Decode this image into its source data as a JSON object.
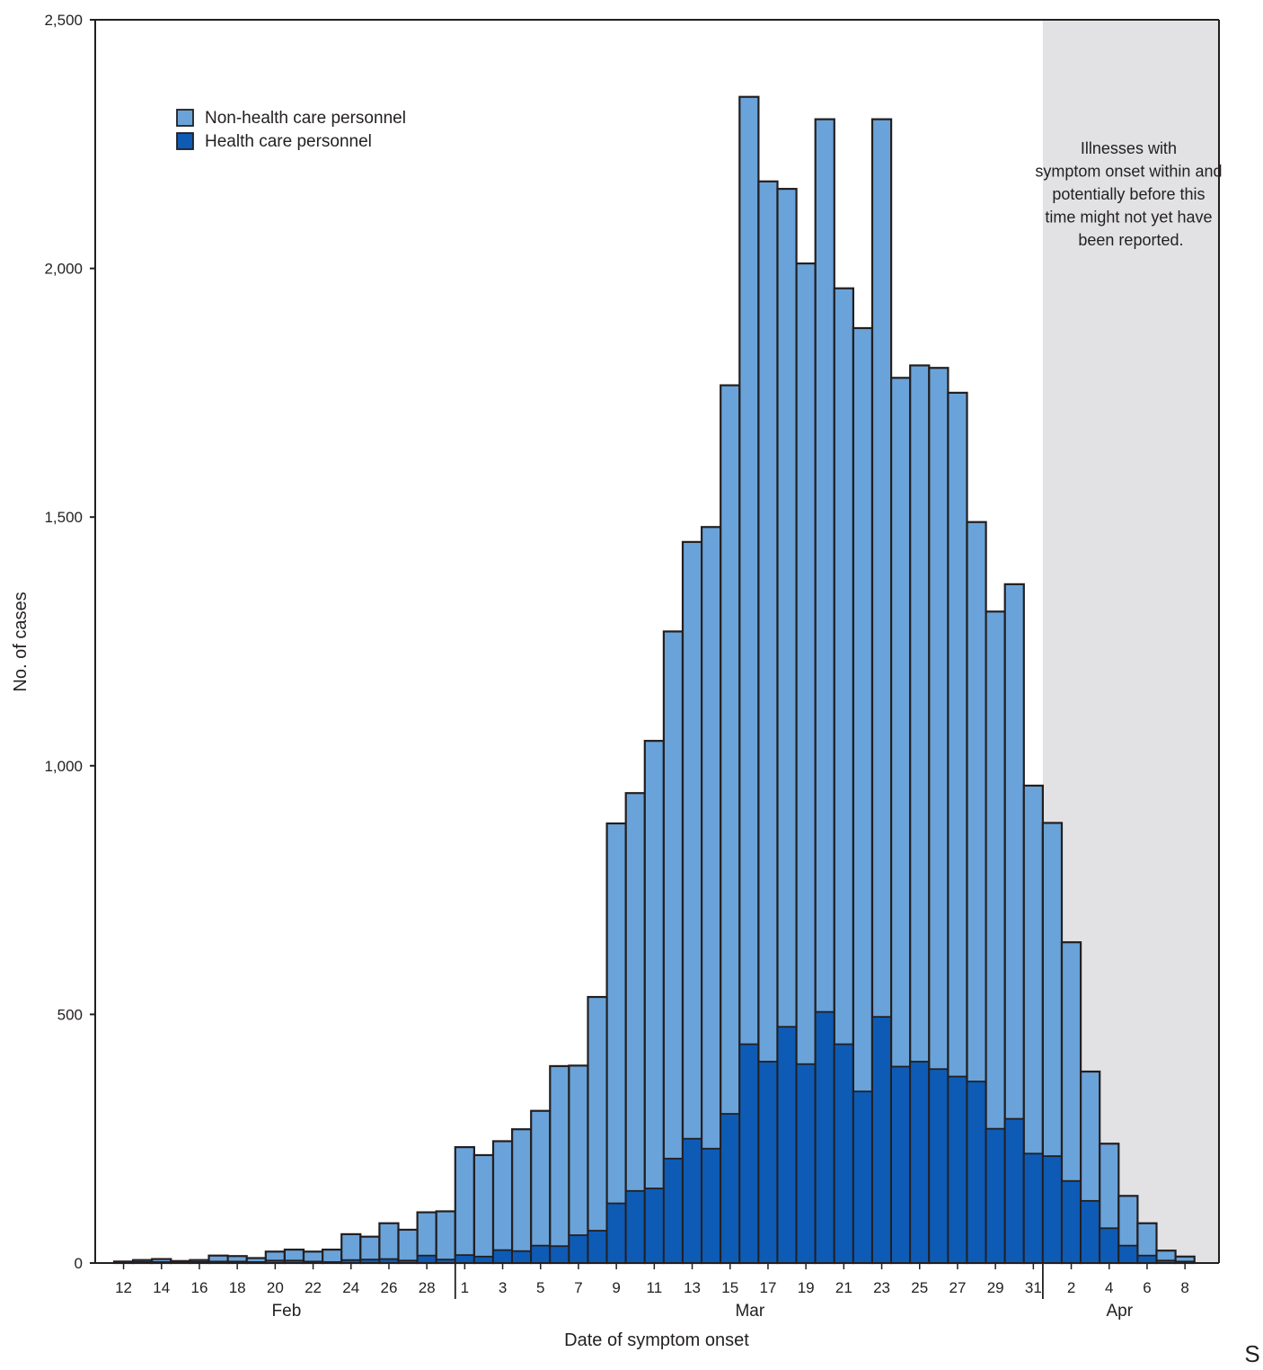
{
  "chart_data": {
    "type": "bar",
    "stacked": true,
    "xlabel": "Date of symptom onset",
    "ylabel": "No. of cases",
    "ylim": [
      0,
      2500
    ],
    "y_ticks": [
      0,
      500,
      1000,
      1500,
      2000,
      2500
    ],
    "y_tick_labels": [
      "0",
      "500",
      "1,000",
      "1,500",
      "2,000",
      "2,500"
    ],
    "grid": false,
    "legend_position": "top-left",
    "categories": [
      "Feb 12",
      "Feb 13",
      "Feb 14",
      "Feb 15",
      "Feb 16",
      "Feb 17",
      "Feb 18",
      "Feb 19",
      "Feb 20",
      "Feb 21",
      "Feb 22",
      "Feb 23",
      "Feb 24",
      "Feb 25",
      "Feb 26",
      "Feb 27",
      "Feb 28",
      "Feb 29",
      "Mar 1",
      "Mar 2",
      "Mar 3",
      "Mar 4",
      "Mar 5",
      "Mar 6",
      "Mar 7",
      "Mar 8",
      "Mar 9",
      "Mar 10",
      "Mar 11",
      "Mar 12",
      "Mar 13",
      "Mar 14",
      "Mar 15",
      "Mar 16",
      "Mar 17",
      "Mar 18",
      "Mar 19",
      "Mar 20",
      "Mar 21",
      "Mar 22",
      "Mar 23",
      "Mar 24",
      "Mar 25",
      "Mar 26",
      "Mar 27",
      "Mar 28",
      "Mar 29",
      "Mar 30",
      "Mar 31",
      "Apr 1",
      "Apr 2",
      "Apr 3",
      "Apr 4",
      "Apr 5",
      "Apr 6",
      "Apr 7",
      "Apr 8"
    ],
    "series": [
      {
        "name": "Health care personnel",
        "color": "#0d5bb5",
        "values": [
          0,
          2,
          2,
          1,
          2,
          3,
          3,
          2,
          5,
          5,
          3,
          2,
          6,
          7,
          8,
          5,
          15,
          7,
          16,
          13,
          26,
          24,
          35,
          34,
          56,
          65,
          120,
          145,
          150,
          210,
          250,
          230,
          300,
          440,
          405,
          475,
          400,
          505,
          440,
          345,
          495,
          395,
          405,
          390,
          375,
          365,
          270,
          290,
          220,
          215,
          165,
          125,
          70,
          35,
          15,
          5,
          3
        ]
      },
      {
        "name": "Non-health care personnel",
        "color": "#6aa3d9",
        "values": [
          3,
          4,
          6,
          3,
          4,
          12,
          11,
          8,
          18,
          22,
          20,
          25,
          52,
          46,
          72,
          62,
          87,
          97,
          217,
          204,
          219,
          245,
          271,
          362,
          341,
          470,
          764,
          800,
          900,
          1060,
          1200,
          1250,
          1465,
          1905,
          1770,
          1685,
          1610,
          1795,
          1520,
          1535,
          1805,
          1385,
          1400,
          1410,
          1375,
          1125,
          1040,
          1075,
          740,
          670,
          480,
          260,
          170,
          100,
          65,
          20,
          10
        ]
      }
    ],
    "x_tick_labels": [
      "12",
      "14",
      "16",
      "18",
      "20",
      "22",
      "24",
      "26",
      "28",
      "1",
      "3",
      "5",
      "7",
      "9",
      "11",
      "13",
      "15",
      "17",
      "19",
      "21",
      "23",
      "25",
      "27",
      "29",
      "31",
      "2",
      "4",
      "6",
      "8"
    ],
    "x_tick_indices": [
      0,
      2,
      4,
      6,
      8,
      10,
      12,
      14,
      16,
      18,
      20,
      22,
      24,
      26,
      28,
      30,
      32,
      34,
      36,
      38,
      40,
      42,
      44,
      46,
      48,
      50,
      52,
      54,
      56
    ],
    "month_labels": [
      "Feb",
      "Mar",
      "Apr"
    ],
    "shaded_region_from": "Mar 31",
    "annotation": "Illnesses with symptom onset within and potentially before this time might not yet have been reported."
  },
  "corner_glyph": "S"
}
